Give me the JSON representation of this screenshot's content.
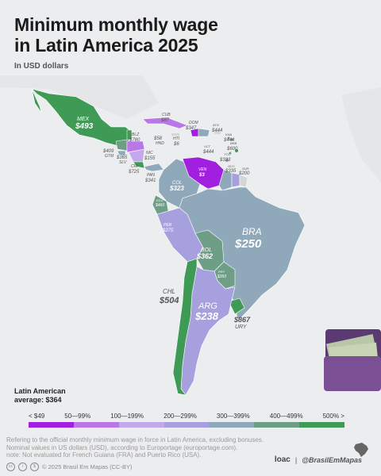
{
  "title": {
    "line1": "Minimum monthly wage",
    "line2": "in Latin America 2025",
    "subtitle": "In USD dollars"
  },
  "colors": {
    "lt49": "#a21fe0",
    "r50_99": "#b978e6",
    "r100_199": "#c3a9ec",
    "r200_299": "#a6a0df",
    "r300_399": "#8fa8ba",
    "r400_499": "#6f9e87",
    "gt500": "#3f9a56",
    "not_evaluated": "#d4d6d8",
    "land_bg": "#dfe1e4"
  },
  "countries": [
    {
      "code": "MEX",
      "value": "$493"
    },
    {
      "code": "CUB",
      "value": "$87"
    },
    {
      "code": "BLZ",
      "value": "$780"
    },
    {
      "code": "DOM",
      "value": "$347"
    },
    {
      "code": "GTM",
      "value": "$409"
    },
    {
      "code": "SLV",
      "value": "$365"
    },
    {
      "code": "HND",
      "value": "$58"
    },
    {
      "code": "HTI",
      "value": "$6"
    },
    {
      "code": "NIC",
      "value": "$155"
    },
    {
      "code": "CRI",
      "value": "$725"
    },
    {
      "code": "PAN",
      "value": "$341"
    },
    {
      "code": "VEN",
      "value": "$3"
    },
    {
      "code": "COL",
      "value": "$323"
    },
    {
      "code": "ECU",
      "value": "$460"
    },
    {
      "code": "PER",
      "value": "$275"
    },
    {
      "code": "BRA",
      "value": "$250"
    },
    {
      "code": "BOL",
      "value": "$362"
    },
    {
      "code": "PRY",
      "value": "$350"
    },
    {
      "code": "CHL",
      "value": "$504"
    },
    {
      "code": "ARG",
      "value": "$238"
    },
    {
      "code": "URY",
      "value": "$867"
    },
    {
      "code": "GUY",
      "value": "$335"
    },
    {
      "code": "SUR",
      "value": "$200"
    },
    {
      "code": "ATG",
      "value": "$444"
    },
    {
      "code": "KNA",
      "value": "$444"
    },
    {
      "code": "BRB",
      "value": "$600"
    },
    {
      "code": "VCT",
      "value": "$444"
    },
    {
      "code": "TTO",
      "value": "$333"
    }
  ],
  "average": {
    "line1": "Latin American",
    "line2": "average: $364"
  },
  "legend": [
    "< $49",
    "50—99%",
    "100—199%",
    "200—299%",
    "300—399%",
    "400—499%",
    "500% >"
  ],
  "notes": [
    "Refering to the official monthly minimum wage in force in Latin America, excluding bonuses.",
    "Nominal values in US dollars (USD), according to Europortage (europortage.com).",
    "note: Not evaluated for French Guiana (FRA) and Puerto Rico (USA)."
  ],
  "footer": {
    "copyright": "© 2025  Brasil Em Mapas (CC-BY)"
  },
  "brand": {
    "logo": "loac",
    "separator": "|",
    "handle": "@BrasilEmMapas"
  }
}
